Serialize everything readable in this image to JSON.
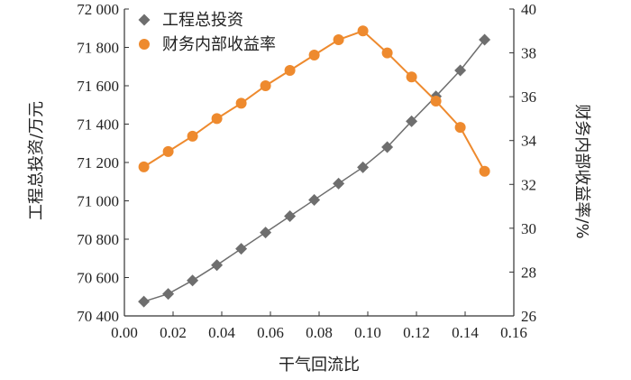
{
  "chart_data": {
    "type": "line",
    "xlabel": "干气回流比",
    "ylabel_left": "工程总投资/万元",
    "ylabel_right": "财务内部收益率/%",
    "xlim": [
      0.0,
      0.16
    ],
    "ylim_left": [
      70400,
      72000
    ],
    "ylim_right": [
      26,
      40
    ],
    "x_ticks": [
      "0.00",
      "0.02",
      "0.04",
      "0.06",
      "0.08",
      "0.10",
      "0.12",
      "0.14",
      "0.16"
    ],
    "y_left_ticks": [
      "70 400",
      "70 600",
      "70 800",
      "71 000",
      "71 200",
      "71 400",
      "71 600",
      "71 800",
      "72 000"
    ],
    "y_right_ticks": [
      "26",
      "28",
      "30",
      "32",
      "34",
      "36",
      "38",
      "40"
    ],
    "legend_position": "top-left",
    "series": [
      {
        "name": "工程总投资",
        "axis": "left",
        "marker": "diamond",
        "color": "#6e6e6e",
        "x": [
          0.008,
          0.018,
          0.028,
          0.038,
          0.048,
          0.058,
          0.068,
          0.078,
          0.088,
          0.098,
          0.108,
          0.118,
          0.128,
          0.138,
          0.148
        ],
        "values": [
          70475,
          70515,
          70585,
          70665,
          70750,
          70835,
          70920,
          71005,
          71090,
          71175,
          71280,
          71415,
          71545,
          71680,
          71840
        ]
      },
      {
        "name": "财务内部收益率",
        "axis": "right",
        "marker": "circle",
        "color": "#ee8a2e",
        "x": [
          0.008,
          0.018,
          0.028,
          0.038,
          0.048,
          0.058,
          0.068,
          0.078,
          0.088,
          0.098,
          0.108,
          0.118,
          0.128,
          0.138,
          0.148
        ],
        "values": [
          32.8,
          33.5,
          34.2,
          35.0,
          35.7,
          36.5,
          37.2,
          37.9,
          38.6,
          39.0,
          38.0,
          36.9,
          35.8,
          34.6,
          32.6
        ]
      }
    ]
  }
}
